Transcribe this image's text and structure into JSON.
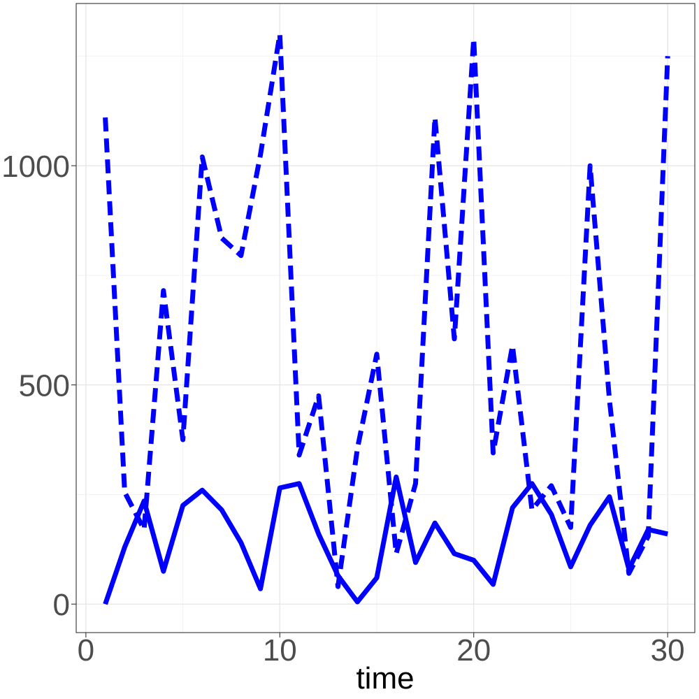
{
  "chart_data": {
    "type": "line",
    "title": "",
    "xlabel": "time",
    "ylabel": "",
    "xlim": [
      -0.5,
      31.4
    ],
    "ylim": [
      -65,
      1370
    ],
    "x_ticks": [
      0,
      10,
      20,
      30
    ],
    "x_tick_labels": [
      "0",
      "10",
      "20",
      "30"
    ],
    "y_ticks": [
      0,
      500,
      1000
    ],
    "y_tick_labels": [
      "0",
      "500",
      "1000"
    ],
    "x_minor_ticks": [
      5,
      15,
      25
    ],
    "y_minor_ticks": [
      250,
      750,
      1250
    ],
    "grid": true,
    "legend": "none",
    "x": [
      1,
      2,
      3,
      4,
      5,
      6,
      7,
      8,
      9,
      10,
      11,
      12,
      13,
      14,
      15,
      16,
      17,
      18,
      19,
      20,
      21,
      22,
      23,
      24,
      25,
      26,
      27,
      28,
      29,
      30
    ],
    "series": [
      {
        "style": "dashed",
        "color": "#0000ff",
        "values": [
          1110,
          255,
          170,
          715,
          375,
          1020,
          835,
          795,
          1025,
          1300,
          340,
          475,
          40,
          355,
          570,
          115,
          275,
          1110,
          605,
          1290,
          345,
          590,
          215,
          270,
          175,
          1000,
          465,
          70,
          155,
          1250
        ]
      },
      {
        "style": "solid",
        "color": "#0000ff",
        "values": [
          0,
          130,
          235,
          75,
          225,
          260,
          215,
          140,
          35,
          265,
          275,
          160,
          65,
          5,
          60,
          290,
          95,
          185,
          115,
          100,
          45,
          220,
          275,
          205,
          85,
          180,
          245,
          80,
          170,
          160
        ]
      }
    ]
  }
}
